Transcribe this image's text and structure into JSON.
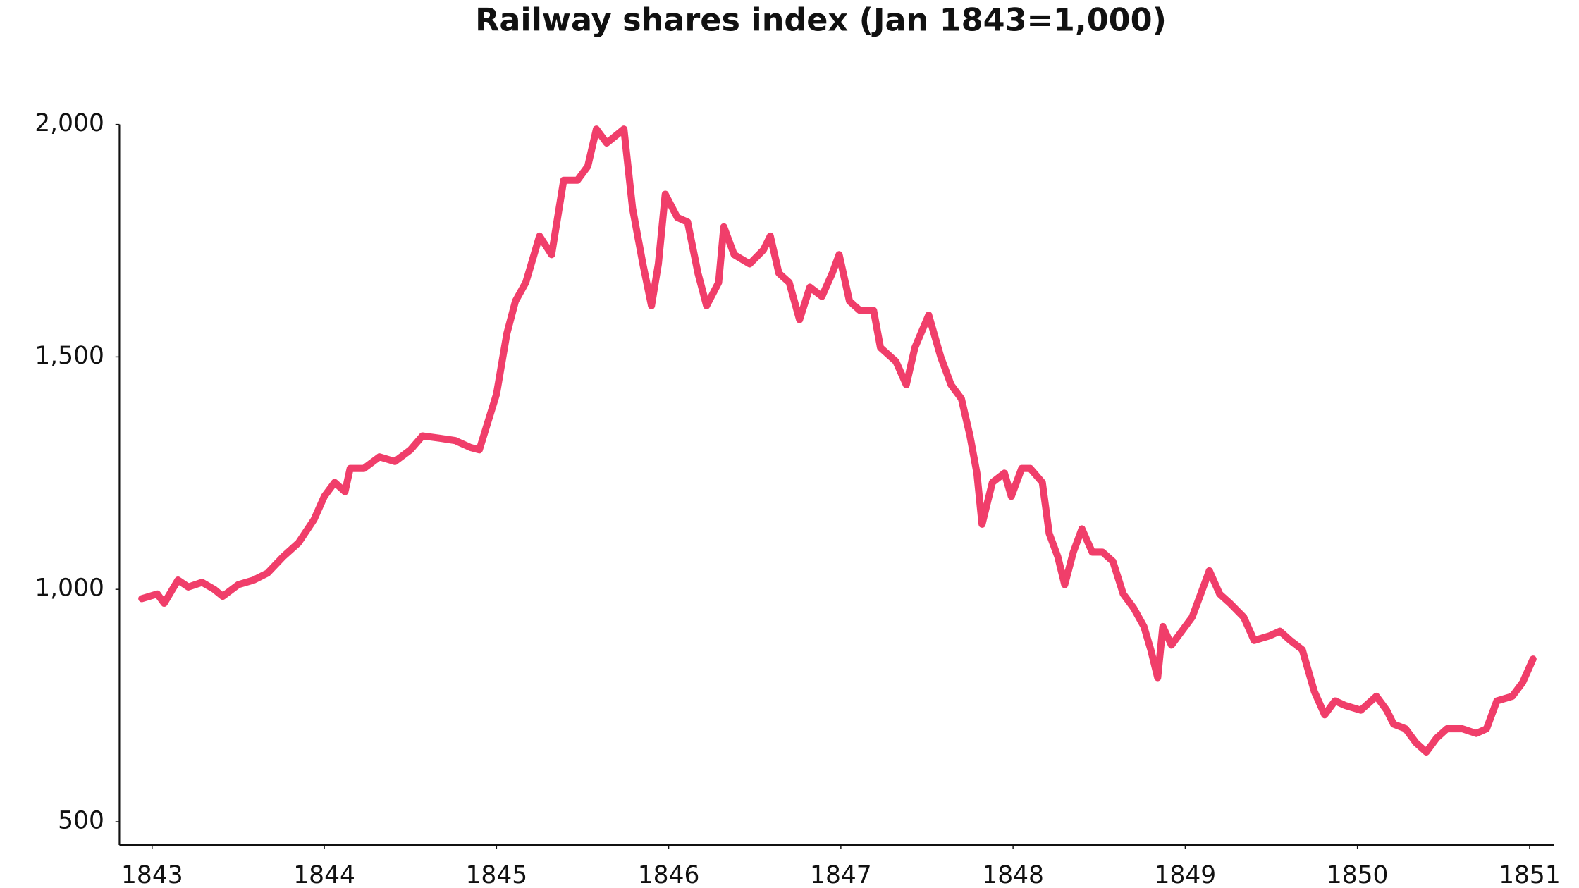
{
  "chart_data": {
    "type": "line",
    "title": "Railway shares index (Jan 1843=1,000)",
    "color": "#f03e6a",
    "xlim": [
      1842.81,
      1851.14
    ],
    "xticks": [
      1843,
      1844,
      1845,
      1846,
      1847,
      1848,
      1849,
      1850,
      1851
    ],
    "ylim": [
      450,
      2000
    ],
    "yticks": [
      500,
      {
        "value": 1000,
        "label": "1,000"
      },
      {
        "value": 1500,
        "label": "1,500"
      },
      {
        "value": 2000,
        "label": "2,000"
      }
    ],
    "grid": false,
    "series": [
      {
        "name": "Railway shares index",
        "color": "#f03e6a",
        "x": [
          1842.94,
          1843.03,
          1843.07,
          1843.15,
          1843.21,
          1843.29,
          1843.36,
          1843.41,
          1843.5,
          1843.59,
          1843.67,
          1843.76,
          1843.85,
          1843.94,
          1844.0,
          1844.06,
          1844.12,
          1844.15,
          1844.23,
          1844.32,
          1844.41,
          1844.5,
          1844.57,
          1844.67,
          1844.76,
          1844.85,
          1844.9,
          1845.0,
          1845.06,
          1845.11,
          1845.17,
          1845.25,
          1845.32,
          1845.39,
          1845.47,
          1845.53,
          1845.58,
          1845.64,
          1845.74,
          1845.79,
          1845.85,
          1845.9,
          1845.94,
          1845.98,
          1846.05,
          1846.11,
          1846.17,
          1846.22,
          1846.29,
          1846.32,
          1846.38,
          1846.47,
          1846.55,
          1846.59,
          1846.64,
          1846.7,
          1846.76,
          1846.82,
          1846.89,
          1846.95,
          1846.99,
          1847.05,
          1847.11,
          1847.19,
          1847.23,
          1847.32,
          1847.38,
          1847.43,
          1847.51,
          1847.58,
          1847.64,
          1847.7,
          1847.75,
          1847.79,
          1847.82,
          1847.88,
          1847.95,
          1847.99,
          1848.05,
          1848.1,
          1848.17,
          1848.21,
          1848.26,
          1848.3,
          1848.35,
          1848.4,
          1848.46,
          1848.52,
          1848.58,
          1848.64,
          1848.7,
          1848.76,
          1848.8,
          1848.84,
          1848.87,
          1848.92,
          1848.98,
          1849.04,
          1849.11,
          1849.14,
          1849.2,
          1849.26,
          1849.34,
          1849.4,
          1849.49,
          1849.55,
          1849.61,
          1849.68,
          1849.75,
          1849.81,
          1849.87,
          1849.93,
          1850.02,
          1850.11,
          1850.17,
          1850.21,
          1850.28,
          1850.34,
          1850.4,
          1850.46,
          1850.52,
          1850.61,
          1850.69,
          1850.75,
          1850.81,
          1850.9,
          1850.96,
          1851.02
        ],
        "values": [
          980,
          990,
          970,
          1020,
          1005,
          1015,
          1000,
          985,
          1010,
          1020,
          1035,
          1070,
          1100,
          1150,
          1200,
          1230,
          1210,
          1260,
          1260,
          1285,
          1275,
          1300,
          1330,
          1325,
          1320,
          1305,
          1300,
          1420,
          1550,
          1620,
          1660,
          1760,
          1720,
          1880,
          1880,
          1910,
          1990,
          1960,
          1990,
          1820,
          1700,
          1610,
          1700,
          1850,
          1800,
          1790,
          1680,
          1610,
          1660,
          1780,
          1720,
          1700,
          1730,
          1760,
          1680,
          1660,
          1580,
          1650,
          1630,
          1680,
          1720,
          1620,
          1600,
          1600,
          1520,
          1490,
          1440,
          1520,
          1590,
          1500,
          1440,
          1410,
          1330,
          1250,
          1140,
          1230,
          1250,
          1200,
          1260,
          1260,
          1230,
          1120,
          1070,
          1010,
          1080,
          1130,
          1080,
          1080,
          1060,
          990,
          960,
          920,
          870,
          810,
          920,
          880,
          910,
          940,
          1010,
          1040,
          990,
          970,
          940,
          890,
          900,
          910,
          890,
          870,
          780,
          730,
          760,
          750,
          740,
          770,
          740,
          710,
          700,
          670,
          650,
          680,
          700,
          700,
          690,
          700,
          760,
          770,
          800,
          850
        ]
      }
    ]
  }
}
